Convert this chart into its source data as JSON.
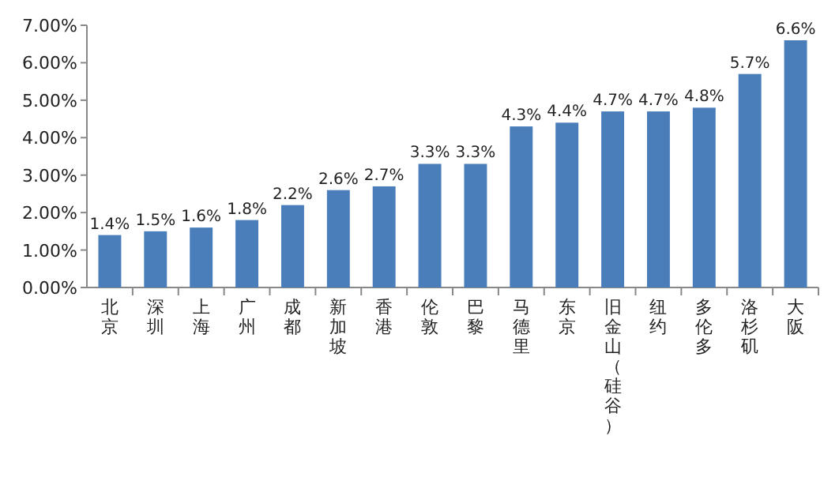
{
  "chart_data": {
    "type": "bar",
    "categories": [
      "北京",
      "深圳",
      "上海",
      "广州",
      "成都",
      "新加坡",
      "香港",
      "伦敦",
      "巴黎",
      "马德里",
      "东京",
      "旧金山（硅谷）",
      "纽约",
      "多伦多",
      "洛杉矶",
      "大阪"
    ],
    "values": [
      1.4,
      1.5,
      1.6,
      1.8,
      2.2,
      2.6,
      2.7,
      3.3,
      3.3,
      4.3,
      4.4,
      4.7,
      4.7,
      4.8,
      5.7,
      6.6
    ],
    "value_labels": [
      "1.4%",
      "1.5%",
      "1.6%",
      "1.8%",
      "2.2%",
      "2.6%",
      "2.7%",
      "3.3%",
      "3.3%",
      "4.3%",
      "4.4%",
      "4.7%",
      "4.7%",
      "4.8%",
      "5.7%",
      "6.6%"
    ],
    "color": "#4a7ebb",
    "ylim": [
      0,
      7
    ],
    "yticks": [
      {
        "value": 0,
        "label": "0.00%"
      },
      {
        "value": 1,
        "label": "1.00%"
      },
      {
        "value": 2,
        "label": "2.00%"
      },
      {
        "value": 3,
        "label": "3.00%"
      },
      {
        "value": 4,
        "label": "4.00%"
      },
      {
        "value": 5,
        "label": "5.00%"
      },
      {
        "value": 6,
        "label": "6.00%"
      },
      {
        "value": 7,
        "label": "7.00%"
      }
    ],
    "grid": false
  }
}
